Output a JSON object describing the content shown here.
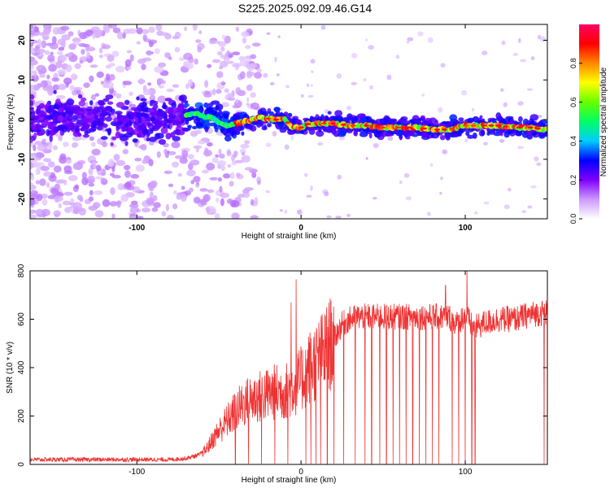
{
  "title": "S225.2025.092.09.46.G14",
  "chart_data": [
    {
      "type": "heatmap",
      "xlabel": "Height of straight line (km)",
      "ylabel": "Frequency (Hz)",
      "xlim": [
        -165,
        150
      ],
      "ylim": [
        -25,
        24
      ],
      "x_ticks": [
        -100,
        0,
        100
      ],
      "y_ticks": [
        20,
        10,
        0,
        -10,
        -20
      ],
      "colorbar": {
        "label": "Normalized spectral amplitude",
        "range": [
          0,
          1
        ],
        "ticks": [
          "0.0",
          "0.2",
          "0.4",
          "0.6",
          "0.8"
        ],
        "tick_values": [
          0,
          0.2,
          0.4,
          0.6,
          0.8
        ],
        "colors": [
          "#ffffff",
          "#cc99ff",
          "#7f00ff",
          "#0000ff",
          "#00ccff",
          "#00ff66",
          "#66ff00",
          "#ffff00",
          "#ff8800",
          "#ff0000",
          "#ff0066"
        ]
      },
      "ridge": {
        "x": [
          -165,
          -150,
          -130,
          -110,
          -90,
          -75,
          -65,
          -55,
          -45,
          -35,
          -25,
          -15,
          -10,
          -5,
          0,
          5,
          10,
          20,
          30,
          40,
          50,
          60,
          70,
          80,
          90,
          95,
          100,
          105,
          110,
          120,
          130,
          140,
          148
        ],
        "y": [
          0,
          0.5,
          0,
          -0.5,
          0,
          0.5,
          1.5,
          0.5,
          -1.5,
          -0.5,
          0.5,
          0,
          0,
          -2,
          -2,
          -1,
          -1,
          -1,
          -1.5,
          -1.5,
          -2,
          -2,
          -2,
          -2.5,
          -2.5,
          -2,
          -1.5,
          -1.5,
          -1.5,
          -1.5,
          -2,
          -2,
          -2.5
        ]
      }
    },
    {
      "type": "line",
      "xlabel": "Height of straight line (km)",
      "ylabel": "SNR (10 * v/v)",
      "xlim": [
        -165,
        150
      ],
      "ylim": [
        0,
        800
      ],
      "x_ticks": [
        -100,
        0,
        100
      ],
      "y_ticks": [
        0,
        200,
        400,
        600,
        800
      ],
      "color": "#ee3333",
      "envelope": {
        "x": [
          -165,
          -80,
          -70,
          -62,
          -58,
          -55,
          -50,
          -45,
          -40,
          -35,
          -30,
          -25,
          -20,
          -15,
          -10,
          -5,
          0,
          5,
          10,
          15,
          20,
          25,
          30,
          35,
          40,
          50,
          60,
          70,
          80,
          90,
          95,
          100,
          105,
          110,
          120,
          130,
          140,
          150
        ],
        "y": [
          20,
          20,
          25,
          40,
          60,
          90,
          140,
          180,
          220,
          250,
          270,
          280,
          290,
          300,
          300,
          320,
          350,
          400,
          430,
          470,
          520,
          580,
          600,
          610,
          610,
          610,
          610,
          610,
          610,
          610,
          580,
          620,
          560,
          580,
          600,
          600,
          620,
          630
        ]
      },
      "spikes": [
        {
          "x": -3,
          "y": 765
        },
        {
          "x": -6,
          "y": 670
        },
        {
          "x": 101,
          "y": 805
        },
        {
          "x": 88,
          "y": 740
        }
      ],
      "dropouts_x": [
        -40,
        -32,
        -24,
        -16,
        -8,
        3,
        6,
        9,
        12,
        16,
        20,
        26,
        33,
        39,
        43,
        48,
        52,
        56,
        60,
        64,
        68,
        72,
        76,
        80,
        84,
        88,
        92,
        96,
        100,
        104,
        106,
        148
      ]
    }
  ]
}
